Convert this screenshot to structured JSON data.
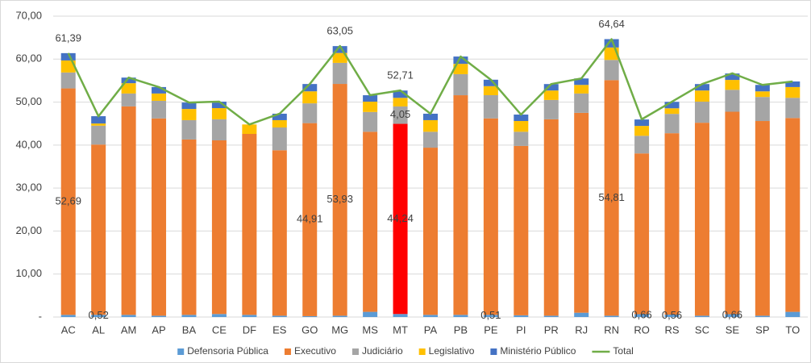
{
  "chart_data": {
    "type": "bar",
    "stacked": true,
    "categories": [
      "AC",
      "AL",
      "AM",
      "AP",
      "BA",
      "CE",
      "DF",
      "ES",
      "GO",
      "MG",
      "MS",
      "MT",
      "PA",
      "PB",
      "PE",
      "PI",
      "PR",
      "RJ",
      "RN",
      "RO",
      "RS",
      "SC",
      "SE",
      "SP",
      "TO"
    ],
    "ylim": [
      0,
      70
    ],
    "yticks": [
      {
        "value": 0,
        "label": "-"
      },
      {
        "value": 10,
        "label": "10,00"
      },
      {
        "value": 20,
        "label": "20,00"
      },
      {
        "value": 30,
        "label": "30,00"
      },
      {
        "value": 40,
        "label": "40,00"
      },
      {
        "value": 50,
        "label": "50,00"
      },
      {
        "value": 60,
        "label": "60,00"
      },
      {
        "value": 70,
        "label": "70,00"
      }
    ],
    "grid": true,
    "legend": "bottom",
    "series": [
      {
        "name": "Defensoria Pública",
        "color": "#5b9bd5",
        "values": [
          0.5,
          0.52,
          0.5,
          0.3,
          0.5,
          0.7,
          0.5,
          0.3,
          0.2,
          0.3,
          1.2,
          0.7,
          0.5,
          0.5,
          0.51,
          0.4,
          0.3,
          1.0,
          0.3,
          0.66,
          0.56,
          0.3,
          0.66,
          0.3,
          1.2
        ],
        "value_labels": [
          null,
          "0,52",
          null,
          null,
          null,
          null,
          null,
          null,
          null,
          null,
          null,
          null,
          null,
          null,
          "0,51",
          null,
          null,
          null,
          null,
          "0,66",
          "0,56",
          null,
          "0,66",
          null,
          null
        ]
      },
      {
        "name": "Executivo",
        "color": "#ed7d31",
        "highlight": {
          "index": 11,
          "color": "#ff0000"
        },
        "values": [
          52.69,
          39.6,
          48.5,
          45.9,
          40.8,
          40.4,
          42.1,
          38.5,
          44.91,
          53.93,
          41.9,
          44.24,
          38.9,
          51.1,
          45.7,
          39.4,
          45.7,
          46.5,
          54.81,
          37.4,
          42.2,
          44.9,
          47.1,
          45.3,
          45.1
        ],
        "value_labels": [
          "52,69",
          null,
          null,
          null,
          null,
          null,
          null,
          null,
          "44,91",
          "53,93",
          null,
          "44,24",
          null,
          null,
          null,
          null,
          null,
          null,
          "54,81",
          null,
          null,
          null,
          null,
          null,
          null
        ]
      },
      {
        "name": "Judiciário",
        "color": "#a5a5a5",
        "values": [
          3.7,
          4.4,
          3.0,
          4.1,
          4.5,
          4.9,
          0,
          5.3,
          4.6,
          4.9,
          4.6,
          4.05,
          3.7,
          4.9,
          5.4,
          3.3,
          4.5,
          4.5,
          4.7,
          4.1,
          4.5,
          4.9,
          5.1,
          5.6,
          4.7
        ],
        "value_labels": [
          null,
          null,
          null,
          null,
          null,
          null,
          null,
          null,
          null,
          null,
          null,
          "4,05",
          null,
          null,
          null,
          null,
          null,
          null,
          null,
          null,
          null,
          null,
          null,
          null,
          null
        ]
      },
      {
        "name": "Legislativo",
        "color": "#ffc000",
        "values": [
          2.8,
          0.5,
          2.4,
          1.7,
          2.6,
          2.6,
          2.2,
          1.7,
          2.8,
          2.3,
          2.4,
          2.0,
          2.7,
          2.4,
          2.1,
          2.5,
          2.2,
          2.0,
          2.9,
          2.3,
          1.3,
          2.6,
          2.3,
          1.3,
          2.5
        ]
      },
      {
        "name": "Ministério Público",
        "color": "#4472c4",
        "values": [
          1.7,
          1.7,
          1.3,
          1.5,
          1.5,
          1.5,
          0,
          1.5,
          1.7,
          1.6,
          1.5,
          1.7,
          1.5,
          1.7,
          1.5,
          1.5,
          1.5,
          1.5,
          1.94,
          1.5,
          1.5,
          1.5,
          1.5,
          1.5,
          1.3
        ]
      },
      {
        "name": "Total",
        "color": "#70ad47",
        "type": "line",
        "values": [
          61.39,
          46.7,
          55.7,
          53.5,
          49.9,
          50.1,
          44.8,
          47.3,
          54.2,
          63.05,
          51.6,
          52.71,
          47.3,
          60.6,
          55.2,
          47.1,
          54.2,
          55.5,
          64.64,
          46.0,
          50.1,
          54.2,
          56.7,
          54.0,
          54.8
        ],
        "value_labels": [
          "61,39",
          null,
          null,
          null,
          null,
          null,
          null,
          null,
          null,
          "63,05",
          null,
          "52,71",
          null,
          null,
          null,
          null,
          null,
          null,
          "64,64",
          null,
          null,
          null,
          null,
          null,
          null
        ]
      }
    ]
  }
}
